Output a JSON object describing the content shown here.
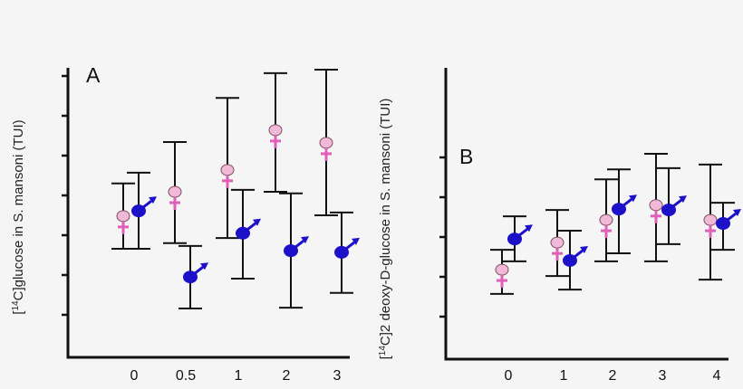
{
  "chart_data": [
    {
      "type": "scatter",
      "panel_label": "A",
      "ylabel_prefix": "[",
      "ylabel_sup": "14",
      "ylabel_rest": "C]glucose in S. mansoni (TUI)",
      "xlabel": "",
      "categories": [
        "0",
        "0.5",
        "1",
        "2",
        "3"
      ],
      "y_tick_labels_shown": false,
      "ylim": [
        0,
        7.3
      ],
      "grid": false,
      "series": [
        {
          "symbol": "female",
          "color": "#e060b8",
          "values": [
            3.48,
            4.09,
            4.64,
            5.64,
            5.32
          ],
          "err_high": [
            4.3,
            5.34,
            6.45,
            7.07,
            7.16
          ],
          "err_low": [
            2.66,
            2.8,
            2.93,
            4.09,
            3.5
          ]
        },
        {
          "symbol": "male",
          "color": "#1c10c8",
          "values": [
            3.61,
            1.95,
            3.05,
            2.61,
            2.57
          ],
          "err_high": [
            4.57,
            2.73,
            4.14,
            4.05,
            3.57
          ],
          "err_low": [
            2.66,
            1.16,
            1.91,
            1.18,
            1.55
          ]
        }
      ]
    },
    {
      "type": "scatter",
      "panel_label": "B",
      "ylabel_prefix": "[",
      "ylabel_sup": "14",
      "ylabel_rest": "C]2 deoxy-D-glucose in S. mansoni (TUI)",
      "xlabel": "",
      "categories": [
        "0",
        "1",
        "2",
        "3",
        "4"
      ],
      "y_tick_labels_shown": false,
      "ylim": [
        0,
        7.3
      ],
      "grid": false,
      "series": [
        {
          "symbol": "female",
          "color": "#e060b8",
          "values": [
            2.18,
            2.86,
            3.43,
            3.8,
            3.43
          ],
          "err_high": [
            2.68,
            3.68,
            4.45,
            5.09,
            4.82
          ],
          "err_low": [
            1.57,
            2.02,
            2.39,
            2.39,
            1.93
          ]
        },
        {
          "symbol": "male",
          "color": "#1c10c8",
          "values": [
            2.95,
            2.41,
            3.7,
            3.68,
            3.34
          ],
          "err_high": [
            3.52,
            3.16,
            4.7,
            4.73,
            3.86
          ],
          "err_low": [
            2.39,
            1.68,
            2.59,
            2.82,
            2.68
          ]
        }
      ]
    }
  ]
}
